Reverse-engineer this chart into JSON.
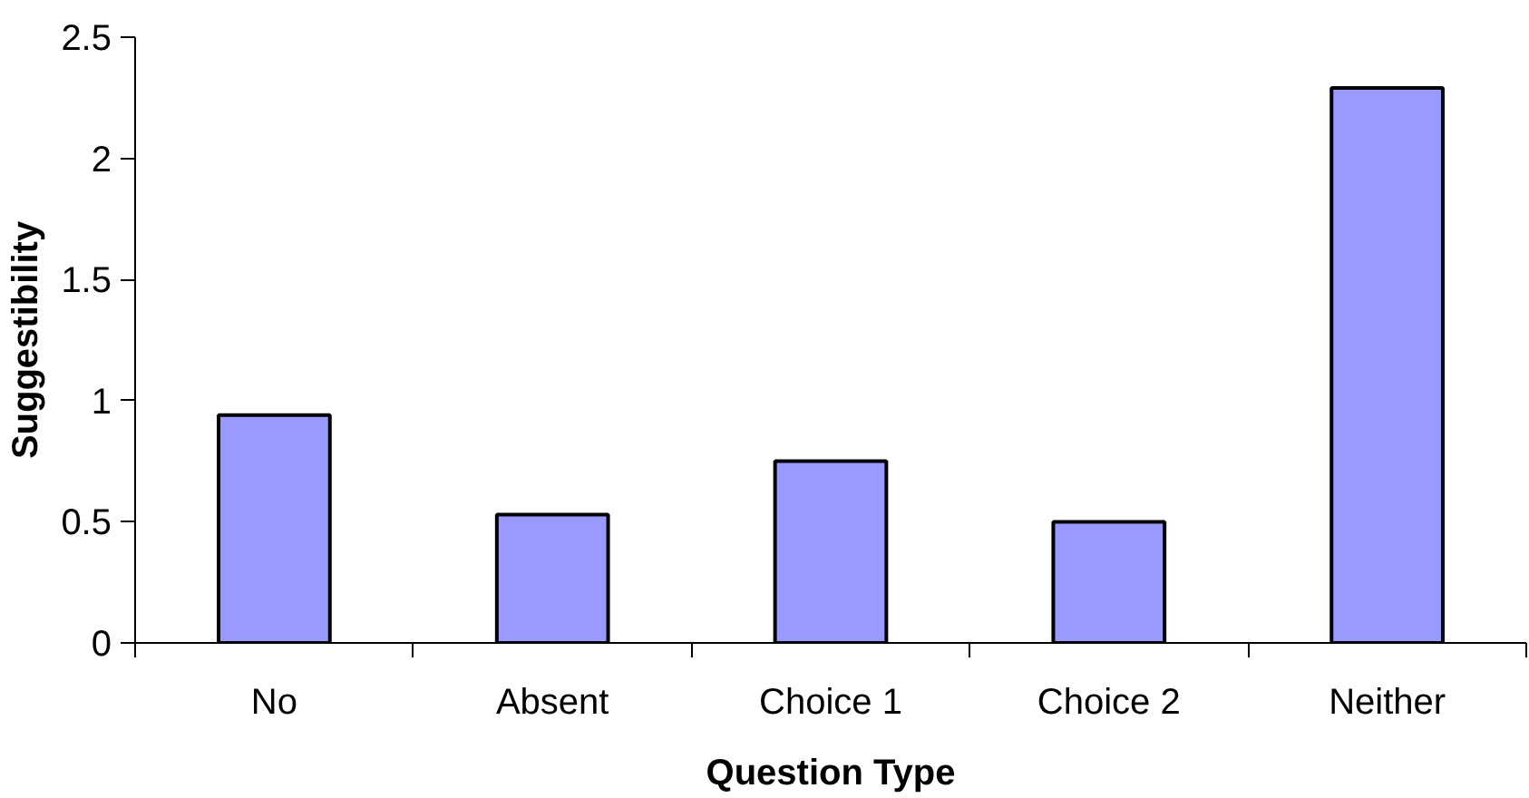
{
  "chart_data": {
    "type": "bar",
    "xlabel": "Question Type",
    "ylabel": "Suggestibility",
    "categories": [
      "No",
      "Absent",
      "Choice 1",
      "Choice 2",
      "Neither"
    ],
    "values": [
      0.94,
      0.53,
      0.75,
      0.5,
      2.29
    ],
    "color": "#9999ff",
    "ylim": [
      0,
      2.5
    ],
    "yticks": [
      0,
      0.5,
      1,
      1.5,
      2,
      2.5
    ],
    "grid": false
  }
}
